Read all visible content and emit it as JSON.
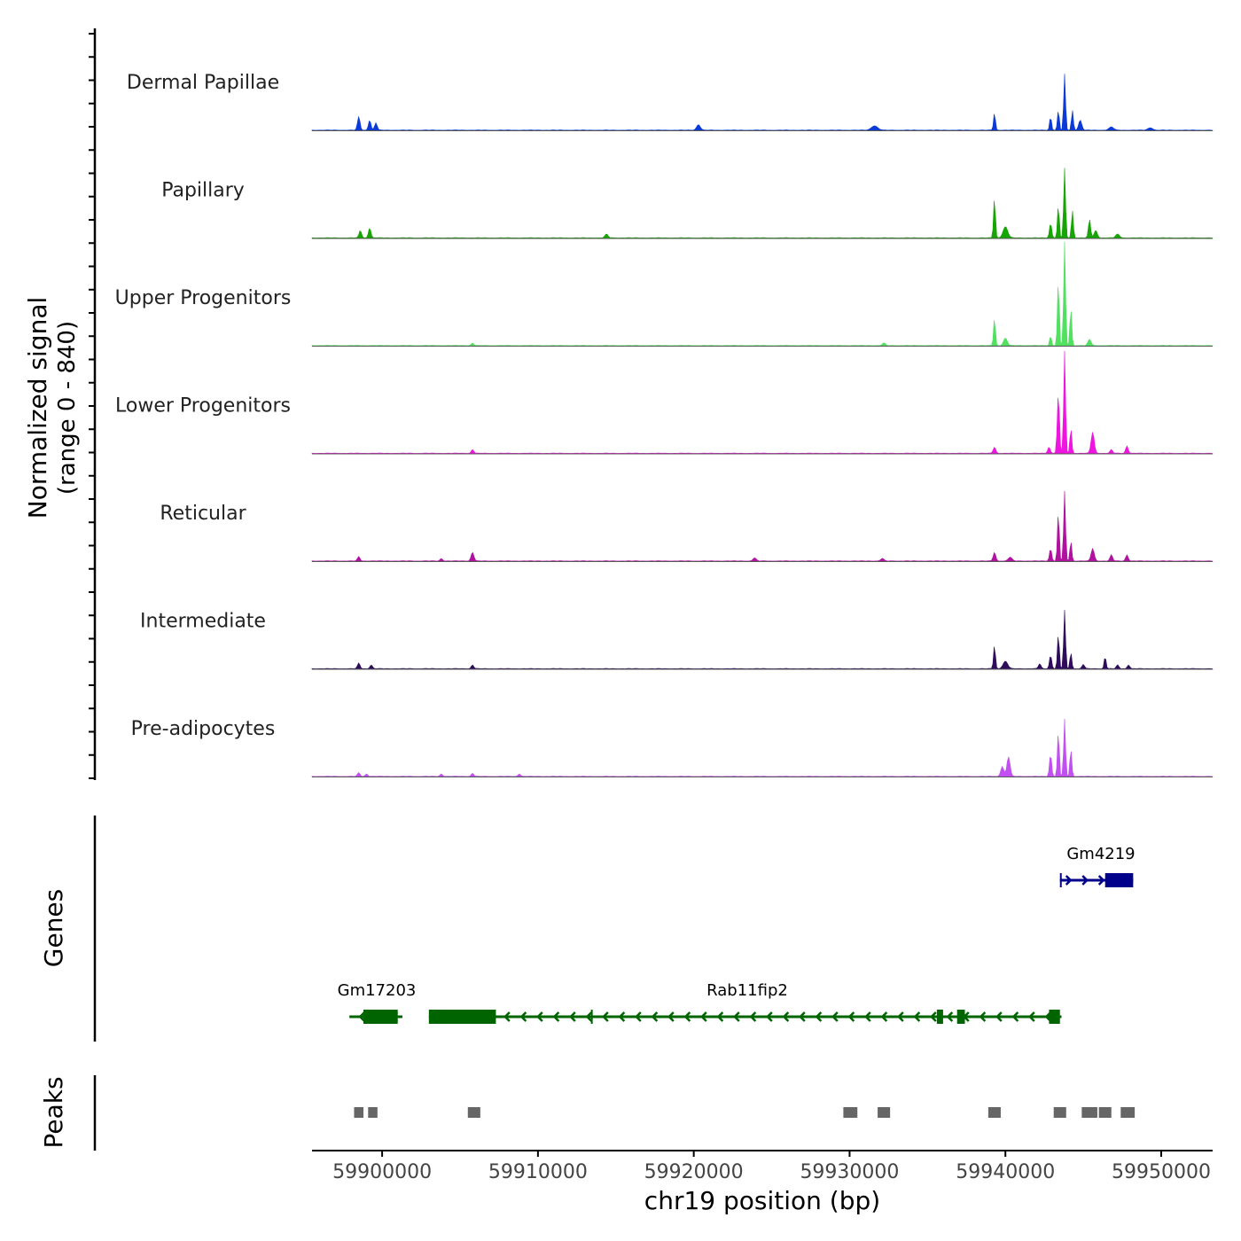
{
  "chart_data": {
    "type": "area",
    "xlabel": "chr19 position (bp)",
    "coverage_ylabel": [
      "Normalized signal",
      "(range 0 - 840)"
    ],
    "coverage_range": [
      0,
      840
    ],
    "xlim": [
      59895500,
      59953300
    ],
    "x_ticks": [
      {
        "value": 59900000,
        "label": "59900000"
      },
      {
        "value": 59910000,
        "label": "59910000"
      },
      {
        "value": 59920000,
        "label": "59920000"
      },
      {
        "value": 59930000,
        "label": "59930000"
      },
      {
        "value": 59940000,
        "label": "59940000"
      },
      {
        "value": 59950000,
        "label": "59950000"
      }
    ],
    "series": [
      {
        "name": "Dermal Papillae",
        "color": "#0b3ad6",
        "peaks": [
          [
            59898500,
            110,
            80
          ],
          [
            59899200,
            80,
            80
          ],
          [
            59899600,
            60,
            80
          ],
          [
            59920300,
            45,
            120
          ],
          [
            59931600,
            35,
            200
          ],
          [
            59939300,
            140,
            60
          ],
          [
            59942900,
            110,
            60
          ],
          [
            59943400,
            160,
            60
          ],
          [
            59943800,
            450,
            60
          ],
          [
            59944300,
            160,
            60
          ],
          [
            59944800,
            80,
            100
          ],
          [
            59946800,
            25,
            150
          ],
          [
            59949300,
            20,
            150
          ]
        ]
      },
      {
        "name": "Papillary",
        "color": "#17a505",
        "peaks": [
          [
            59898600,
            60,
            80
          ],
          [
            59899200,
            80,
            80
          ],
          [
            59914400,
            30,
            100
          ],
          [
            59939300,
            320,
            60
          ],
          [
            59940000,
            90,
            150
          ],
          [
            59942900,
            120,
            70
          ],
          [
            59943400,
            260,
            60
          ],
          [
            59943800,
            560,
            60
          ],
          [
            59944300,
            220,
            60
          ],
          [
            59945400,
            150,
            70
          ],
          [
            59945800,
            60,
            100
          ],
          [
            59947200,
            30,
            120
          ]
        ]
      },
      {
        "name": "Upper Progenitors",
        "color": "#52e061",
        "peaks": [
          [
            59905800,
            20,
            80
          ],
          [
            59932200,
            20,
            100
          ],
          [
            59939300,
            220,
            60
          ],
          [
            59940000,
            60,
            120
          ],
          [
            59942900,
            80,
            60
          ],
          [
            59943400,
            520,
            60
          ],
          [
            59943800,
            840,
            60
          ],
          [
            59944200,
            300,
            60
          ],
          [
            59945400,
            50,
            100
          ]
        ]
      },
      {
        "name": "Lower Progenitors",
        "color": "#f014e0",
        "peaks": [
          [
            59905800,
            30,
            80
          ],
          [
            59939300,
            50,
            80
          ],
          [
            59942800,
            50,
            80
          ],
          [
            59943400,
            480,
            70
          ],
          [
            59943800,
            820,
            60
          ],
          [
            59944200,
            200,
            60
          ],
          [
            59945600,
            170,
            100
          ],
          [
            59947800,
            60,
            80
          ],
          [
            59946800,
            30,
            80
          ]
        ]
      },
      {
        "name": "Reticular",
        "color": "#b0129f",
        "peaks": [
          [
            59898500,
            35,
            80
          ],
          [
            59903800,
            20,
            80
          ],
          [
            59905800,
            70,
            90
          ],
          [
            59923900,
            25,
            100
          ],
          [
            59932100,
            20,
            100
          ],
          [
            59939300,
            70,
            80
          ],
          [
            59940300,
            30,
            120
          ],
          [
            59942900,
            100,
            70
          ],
          [
            59943400,
            390,
            60
          ],
          [
            59943800,
            560,
            60
          ],
          [
            59944200,
            160,
            60
          ],
          [
            59945600,
            100,
            100
          ],
          [
            59946800,
            50,
            80
          ],
          [
            59947800,
            50,
            80
          ]
        ]
      },
      {
        "name": "Intermediate",
        "color": "#2e0c5b",
        "peaks": [
          [
            59898500,
            45,
            80
          ],
          [
            59899300,
            30,
            80
          ],
          [
            59905800,
            30,
            80
          ],
          [
            59939300,
            190,
            60
          ],
          [
            59940000,
            60,
            150
          ],
          [
            59942200,
            40,
            80
          ],
          [
            59942900,
            110,
            70
          ],
          [
            59943400,
            280,
            60
          ],
          [
            59943800,
            470,
            60
          ],
          [
            59944200,
            130,
            60
          ],
          [
            59945000,
            35,
            80
          ],
          [
            59946400,
            100,
            60
          ],
          [
            59947200,
            30,
            80
          ],
          [
            59947900,
            30,
            80
          ]
        ]
      },
      {
        "name": "Pre-adipocytes",
        "color": "#c250f0",
        "peaks": [
          [
            59898500,
            30,
            80
          ],
          [
            59899000,
            20,
            80
          ],
          [
            59903800,
            20,
            80
          ],
          [
            59905800,
            25,
            80
          ],
          [
            59908800,
            20,
            80
          ],
          [
            59939800,
            80,
            100
          ],
          [
            59940200,
            160,
            100
          ],
          [
            59942900,
            180,
            70
          ],
          [
            59943400,
            360,
            60
          ],
          [
            59943800,
            460,
            60
          ],
          [
            59944200,
            220,
            60
          ]
        ]
      }
    ],
    "genes_track_label": "Genes",
    "genes": [
      {
        "name": "Gm4219",
        "color": "#00008b",
        "strand": "+",
        "start": 59943500,
        "end": 59948200,
        "exons": [
          [
            59943500,
            59943560
          ],
          [
            59946400,
            59948200
          ]
        ]
      },
      {
        "name": "Gm17203",
        "color": "#006400",
        "strand": "-",
        "start": 59897900,
        "end": 59901300,
        "exons": [
          [
            59898800,
            59901000
          ]
        ]
      },
      {
        "name": "Rab11fip2",
        "color": "#006400",
        "strand": "-",
        "start": 59903000,
        "end": 59943600,
        "exons": [
          [
            59903000,
            59907300
          ],
          [
            59913400,
            59913450
          ],
          [
            59935600,
            59936000
          ],
          [
            59936900,
            59937400
          ],
          [
            59942800,
            59943500
          ]
        ]
      }
    ],
    "peaks_track_label": "Peaks",
    "peak_regions": [
      [
        59898200,
        59898800
      ],
      [
        59899100,
        59899700
      ],
      [
        59905500,
        59906300
      ],
      [
        59929600,
        59930500
      ],
      [
        59931800,
        59932600
      ],
      [
        59938900,
        59939700
      ],
      [
        59943100,
        59943900
      ],
      [
        59944900,
        59945900
      ],
      [
        59946000,
        59946800
      ],
      [
        59947400,
        59948300
      ]
    ],
    "peak_color": "#666666"
  }
}
